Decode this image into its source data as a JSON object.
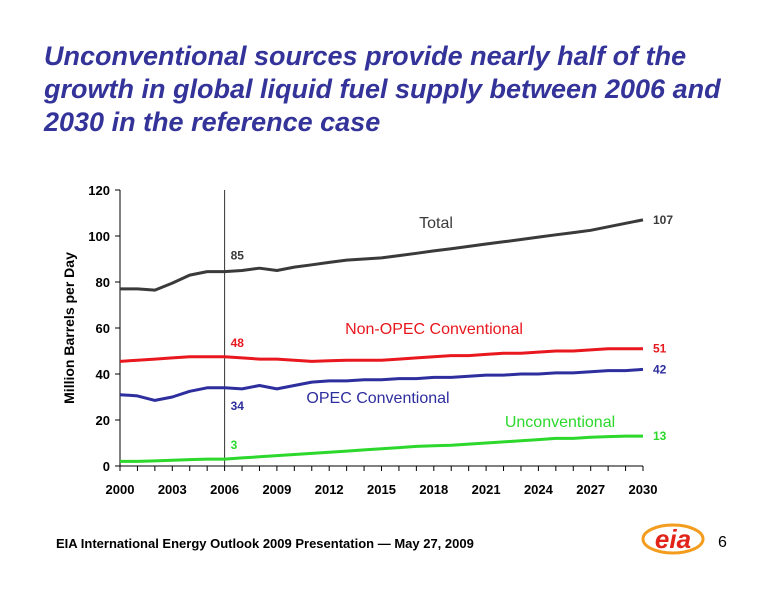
{
  "slide": {
    "title": "Unconventional sources provide nearly half of the growth in global liquid fuel supply between 2006 and 2030 in the reference case",
    "footer": "EIA International Energy Outlook 2009 Presentation — May 27, 2009",
    "page_number": "6",
    "logo_text": "eia"
  },
  "colors": {
    "title": "#333399",
    "total": "#3a3a3a",
    "non_opec": "#e8181e",
    "opec": "#2e2e9e",
    "unconventional": "#2bd82b",
    "logo_red": "#e2231a",
    "logo_orange": "#f39c1e"
  },
  "chart_data": {
    "type": "line",
    "title": "",
    "xlabel": "",
    "ylabel": "Million Barrels per Day",
    "xlim": [
      2000,
      2030
    ],
    "ylim": [
      0,
      120
    ],
    "x_ticks": [
      "2000",
      "2003",
      "2006",
      "2009",
      "2012",
      "2015",
      "2018",
      "2021",
      "2024",
      "2027",
      "2030"
    ],
    "y_ticks": [
      "0",
      "20",
      "40",
      "60",
      "80",
      "100",
      "120"
    ],
    "reference_line_x": 2006,
    "grid": false,
    "legend": "inline labels",
    "x": [
      2000,
      2001,
      2002,
      2003,
      2004,
      2005,
      2006,
      2007,
      2008,
      2009,
      2010,
      2011,
      2012,
      2013,
      2014,
      2015,
      2016,
      2017,
      2018,
      2019,
      2020,
      2021,
      2022,
      2023,
      2024,
      2025,
      2026,
      2027,
      2028,
      2029,
      2030
    ],
    "series": [
      {
        "name": "Total",
        "color_key": "total",
        "values": [
          77,
          77,
          76.5,
          79.5,
          83,
          84.5,
          84.5,
          85,
          86,
          85,
          86.5,
          87.5,
          88.5,
          89.5,
          90,
          90.5,
          91.5,
          92.5,
          93.5,
          94.5,
          95.5,
          96.5,
          97.5,
          98.5,
          99.5,
          100.5,
          101.5,
          102.5,
          104,
          105.5,
          107
        ],
        "labels": [
          {
            "x": 2006,
            "text": "85"
          },
          {
            "x": 2030,
            "text": "107"
          }
        ]
      },
      {
        "name": "Non-OPEC Conventional",
        "color_key": "non_opec",
        "values": [
          45.5,
          46,
          46.5,
          47,
          47.5,
          47.5,
          47.5,
          47,
          46.5,
          46.5,
          46,
          45.5,
          45.8,
          46,
          46,
          46,
          46.5,
          47,
          47.5,
          48,
          48,
          48.5,
          49,
          49,
          49.5,
          50,
          50,
          50.5,
          51,
          51,
          51
        ],
        "labels": [
          {
            "x": 2006,
            "text": "48"
          },
          {
            "x": 2030,
            "text": "51"
          }
        ]
      },
      {
        "name": "OPEC Conventional",
        "color_key": "opec",
        "values": [
          31,
          30.5,
          28.5,
          30,
          32.5,
          34,
          34,
          33.5,
          35,
          33.5,
          35,
          36.5,
          37,
          37,
          37.5,
          37.5,
          38,
          38,
          38.5,
          38.5,
          39,
          39.5,
          39.5,
          40,
          40,
          40.5,
          40.5,
          41,
          41.5,
          41.5,
          42
        ],
        "labels": [
          {
            "x": 2006,
            "text": "34"
          },
          {
            "x": 2030,
            "text": "42"
          }
        ]
      },
      {
        "name": "Unconventional",
        "color_key": "unconventional",
        "values": [
          2,
          2,
          2.2,
          2.5,
          2.8,
          3,
          3,
          3.5,
          4,
          4.5,
          5,
          5.5,
          6,
          6.5,
          7,
          7.5,
          8,
          8.5,
          8.8,
          9,
          9.5,
          10,
          10.5,
          11,
          11.5,
          12,
          12,
          12.5,
          12.8,
          13,
          13
        ],
        "labels": [
          {
            "x": 2006,
            "text": "3"
          },
          {
            "x": 2030,
            "text": "13"
          }
        ]
      }
    ]
  }
}
